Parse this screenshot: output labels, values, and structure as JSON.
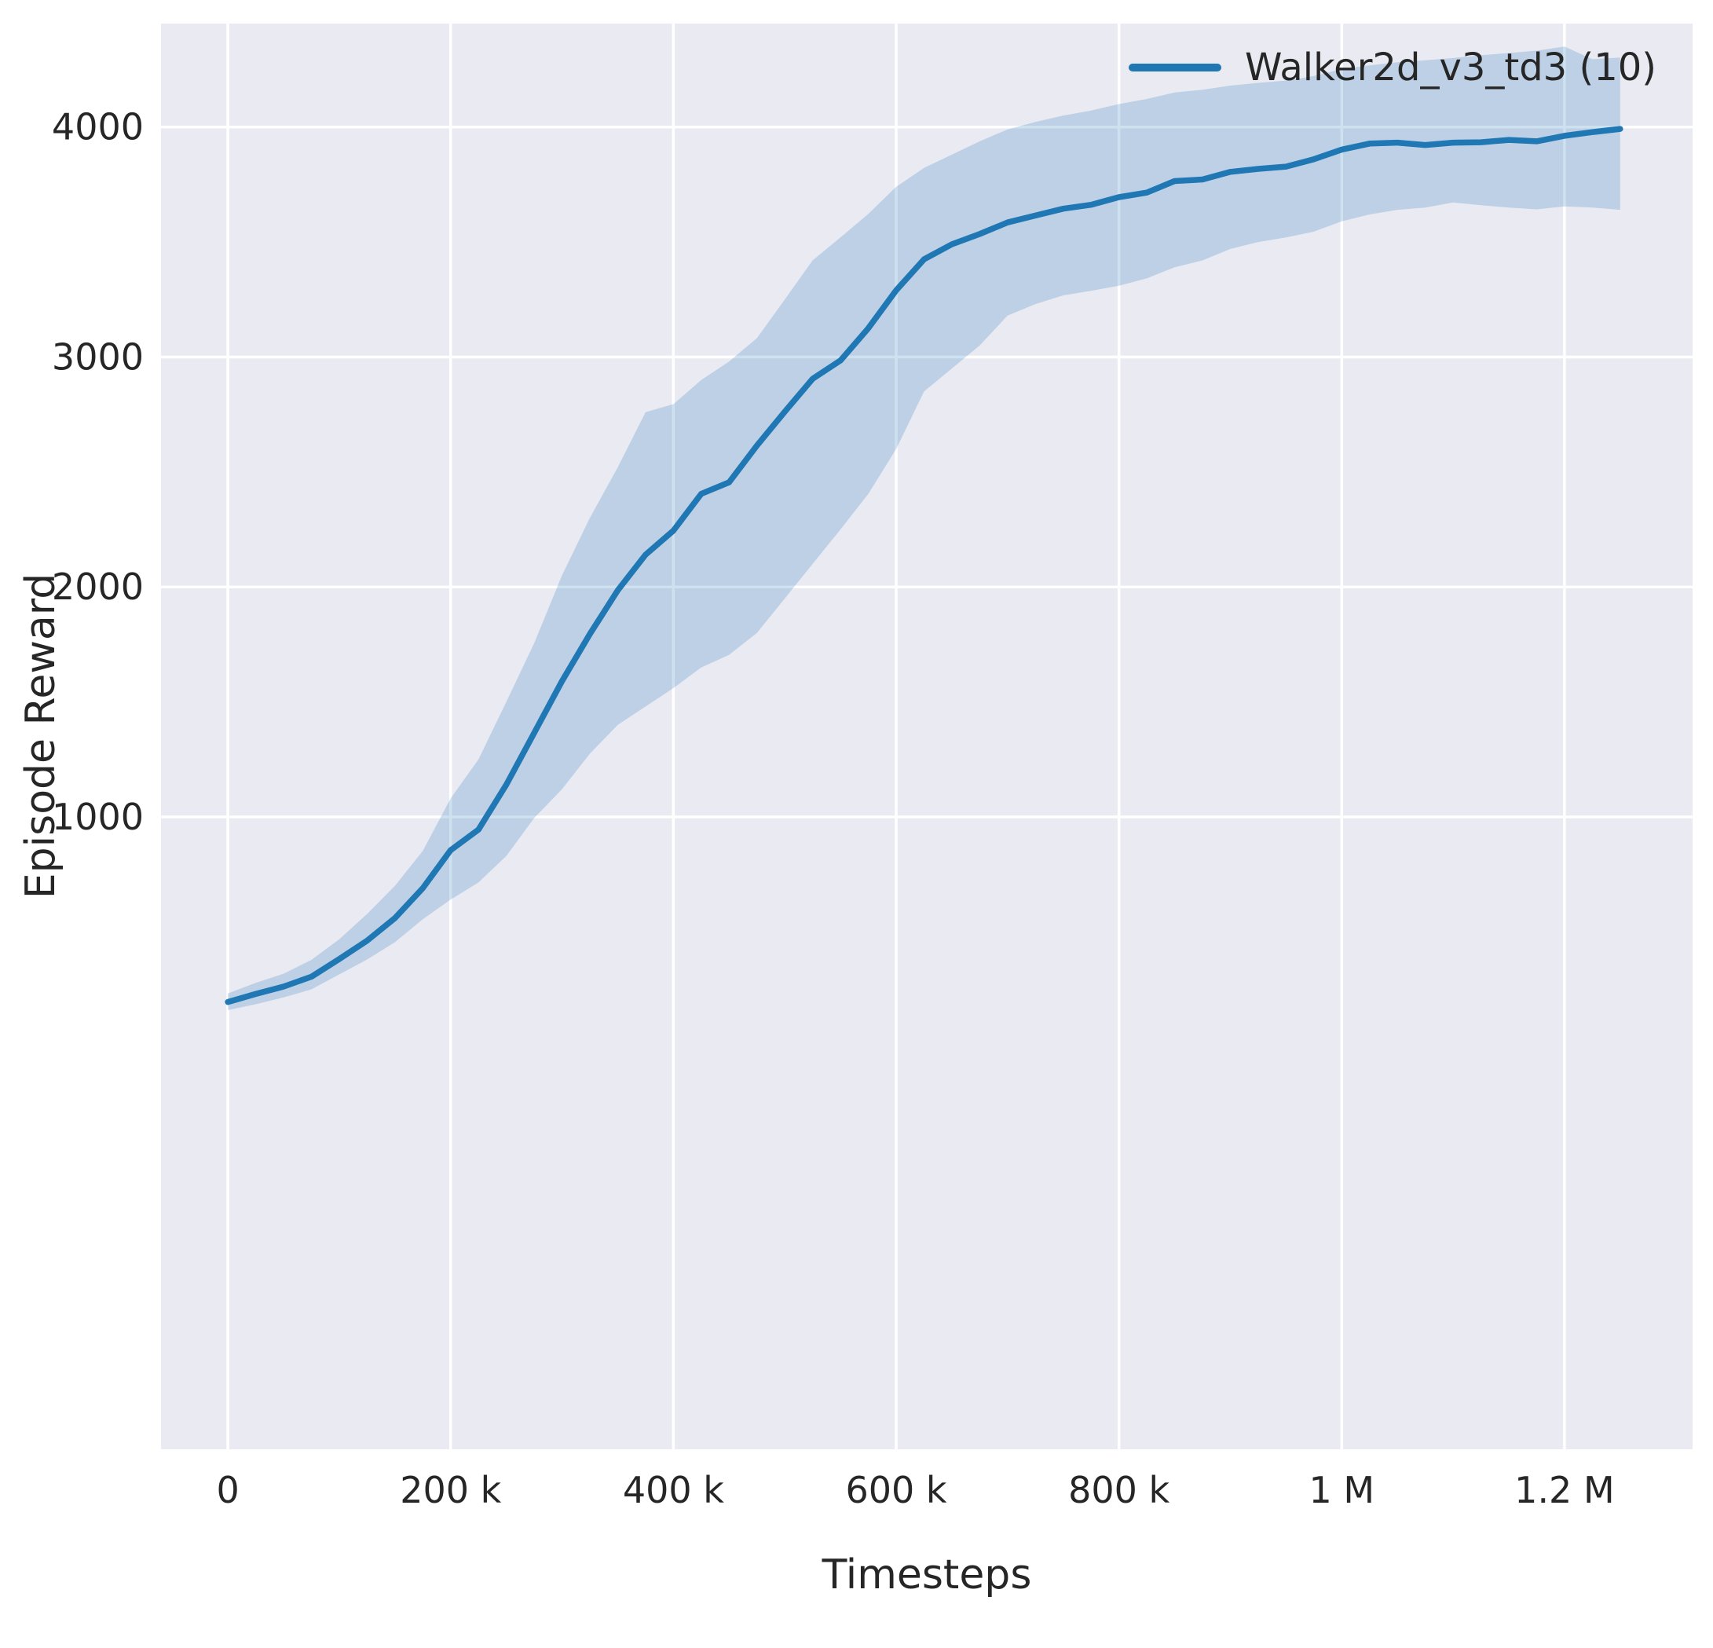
{
  "colors": {
    "axes_bg": "#eaeaf2",
    "grid": "#ffffff",
    "text": "#262626",
    "line": "#1f77b4",
    "band": "#1f77b4"
  },
  "chart_data": {
    "type": "line",
    "title": "",
    "xlabel": "Timesteps",
    "ylabel": "Episode Reward",
    "legend_position": "upper right",
    "grid": true,
    "xlim": [
      -60000,
      1315000
    ],
    "ylim": [
      -1750,
      4450
    ],
    "x_ticks": [
      {
        "value": 0,
        "label": "0"
      },
      {
        "value": 200000,
        "label": "200 k"
      },
      {
        "value": 400000,
        "label": "400 k"
      },
      {
        "value": 600000,
        "label": "600 k"
      },
      {
        "value": 800000,
        "label": "800 k"
      },
      {
        "value": 1000000,
        "label": "1 M"
      },
      {
        "value": 1200000,
        "label": "1.2 M"
      }
    ],
    "y_ticks": [
      {
        "value": 1000,
        "label": "1000"
      },
      {
        "value": 2000,
        "label": "2000"
      },
      {
        "value": 3000,
        "label": "3000"
      },
      {
        "value": 4000,
        "label": "4000"
      }
    ],
    "legend": {
      "label": "Walker2d_v3_td3 (10)"
    },
    "series": [
      {
        "name": "Walker2d_v3_td3 (10)",
        "color": "#1f77b4",
        "band_opacity": 0.22,
        "x": [
          0,
          25000,
          50000,
          75000,
          100000,
          125000,
          150000,
          175000,
          200000,
          225000,
          250000,
          275000,
          300000,
          325000,
          350000,
          375000,
          400000,
          425000,
          450000,
          475000,
          500000,
          525000,
          550000,
          575000,
          600000,
          625000,
          650000,
          675000,
          700000,
          725000,
          750000,
          775000,
          800000,
          825000,
          850000,
          875000,
          900000,
          925000,
          950000,
          975000,
          1000000,
          1025000,
          1050000,
          1075000,
          1100000,
          1125000,
          1150000,
          1175000,
          1200000,
          1225000,
          1250000
        ],
        "mean": [
          195,
          230,
          262,
          305,
          382,
          462,
          560,
          690,
          855,
          945,
          1140,
          1365,
          1590,
          1795,
          1985,
          2140,
          2245,
          2405,
          2455,
          2615,
          2762,
          2905,
          2985,
          3125,
          3290,
          3425,
          3490,
          3535,
          3585,
          3615,
          3645,
          3662,
          3695,
          3715,
          3765,
          3772,
          3805,
          3818,
          3828,
          3860,
          3902,
          3928,
          3932,
          3922,
          3932,
          3934,
          3944,
          3938,
          3962,
          3978,
          3992
        ],
        "lower": [
          160,
          185,
          215,
          250,
          315,
          380,
          455,
          555,
          640,
          715,
          830,
          995,
          1120,
          1275,
          1400,
          1480,
          1560,
          1650,
          1705,
          1800,
          1950,
          2100,
          2250,
          2405,
          2600,
          2850,
          2950,
          3050,
          3180,
          3230,
          3268,
          3288,
          3310,
          3342,
          3390,
          3420,
          3470,
          3500,
          3520,
          3545,
          3590,
          3620,
          3640,
          3650,
          3672,
          3660,
          3650,
          3642,
          3655,
          3650,
          3640
        ],
        "upper": [
          232,
          278,
          318,
          378,
          468,
          578,
          700,
          852,
          1080,
          1250,
          1500,
          1755,
          2050,
          2300,
          2520,
          2760,
          2795,
          2900,
          2980,
          3082,
          3250,
          3420,
          3520,
          3622,
          3740,
          3822,
          3880,
          3938,
          3990,
          4022,
          4050,
          4072,
          4100,
          4122,
          4150,
          4162,
          4180,
          4192,
          4202,
          4222,
          4252,
          4268,
          4282,
          4290,
          4300,
          4312,
          4322,
          4332,
          4350,
          4295,
          4302
        ]
      }
    ]
  }
}
